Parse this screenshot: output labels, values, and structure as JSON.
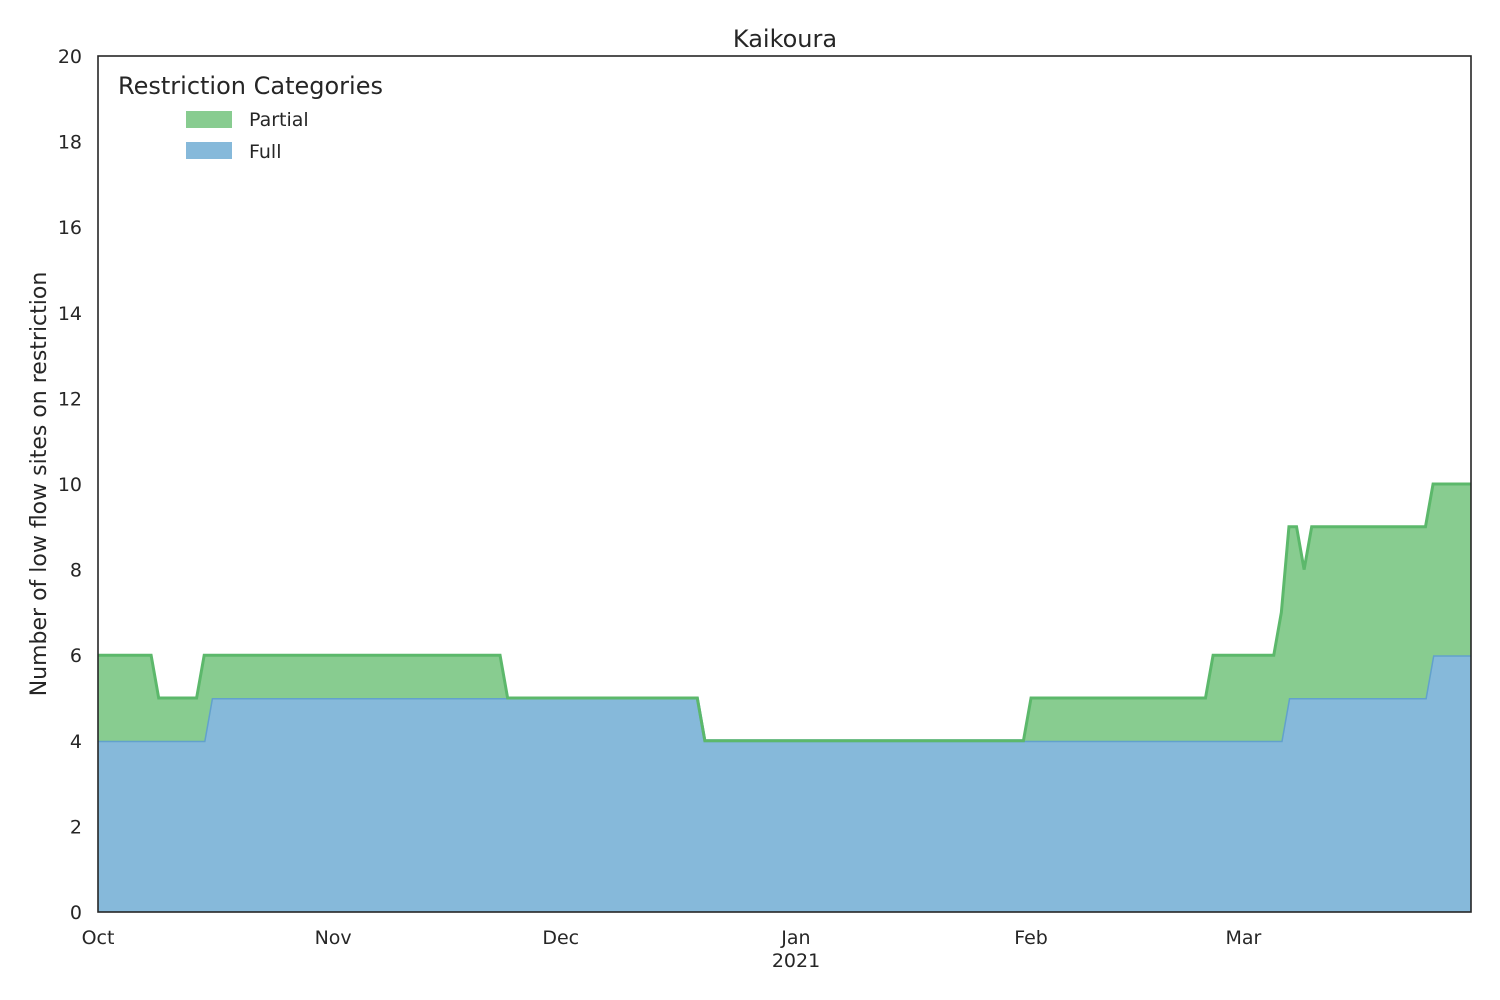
{
  "chart_data": {
    "type": "area",
    "stacked": true,
    "title": "Kaikoura",
    "xlabel": "",
    "ylabel": "Number of low flow sites on restriction",
    "ylim": [
      0,
      20
    ],
    "yticks": [
      0,
      2,
      4,
      6,
      8,
      10,
      12,
      14,
      16,
      18,
      20
    ],
    "xlim": [
      "2020-10-01",
      "2021-03-31"
    ],
    "xticks": [
      {
        "date": "2020-10-01",
        "label": "Oct"
      },
      {
        "date": "2020-11-01",
        "label": "Nov"
      },
      {
        "date": "2020-12-01",
        "label": "Dec"
      },
      {
        "date": "2021-01-01",
        "label": "Jan"
      },
      {
        "date": "2021-02-01",
        "label": "Feb"
      },
      {
        "date": "2021-03-01",
        "label": "Mar"
      }
    ],
    "year_label": "2021",
    "grid": false,
    "legend": {
      "title": "Restriction Categories",
      "placement": "top-left"
    },
    "series": [
      {
        "name": "Full",
        "color": "#86b9da",
        "line_color": "#62a1cc",
        "points": [
          [
            "2020-10-01",
            4
          ],
          [
            "2020-10-15",
            4
          ],
          [
            "2020-10-16",
            5
          ],
          [
            "2020-12-19",
            5
          ],
          [
            "2020-12-20",
            4
          ],
          [
            "2021-03-06",
            4
          ],
          [
            "2021-03-07",
            5
          ],
          [
            "2021-03-25",
            5
          ],
          [
            "2021-03-26",
            6
          ],
          [
            "2021-03-31",
            6
          ]
        ]
      },
      {
        "name": "Partial",
        "color": "#88cc90",
        "line_color": "#5cb86b",
        "points": [
          [
            "2020-10-01",
            2
          ],
          [
            "2020-10-08",
            2
          ],
          [
            "2020-10-09",
            1
          ],
          [
            "2020-10-14",
            1
          ],
          [
            "2020-10-15",
            2
          ],
          [
            "2020-10-16",
            1
          ],
          [
            "2020-11-23",
            1
          ],
          [
            "2020-11-24",
            0
          ],
          [
            "2021-01-31",
            0
          ],
          [
            "2021-02-01",
            1
          ],
          [
            "2021-02-24",
            1
          ],
          [
            "2021-02-25",
            2
          ],
          [
            "2021-03-05",
            2
          ],
          [
            "2021-03-06",
            3
          ],
          [
            "2021-03-07",
            4
          ],
          [
            "2021-03-08",
            4
          ],
          [
            "2021-03-09",
            3
          ],
          [
            "2021-03-10",
            4
          ],
          [
            "2021-03-25",
            4
          ],
          [
            "2021-03-31",
            4
          ]
        ]
      }
    ]
  }
}
